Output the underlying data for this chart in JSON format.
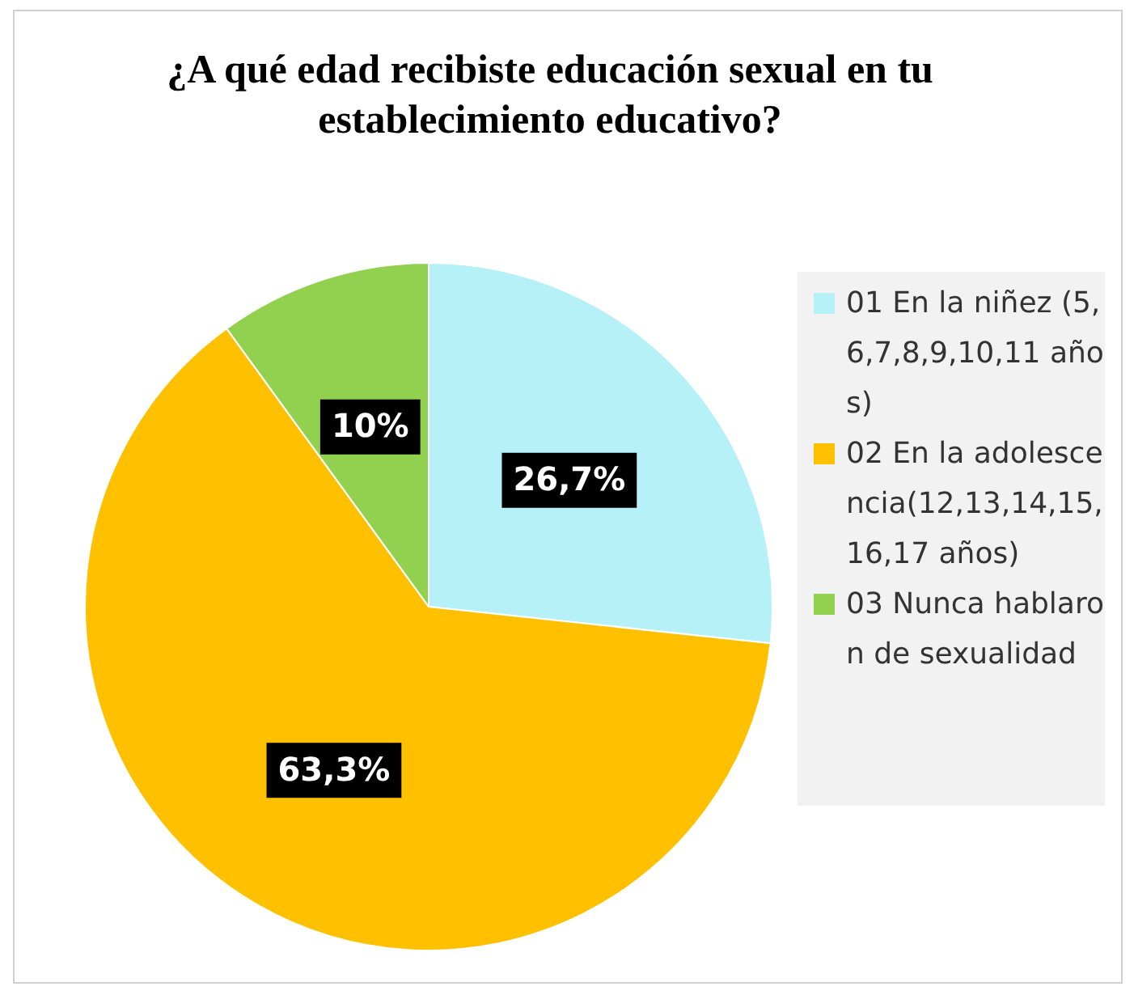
{
  "chart_data": {
    "type": "pie",
    "title": "¿A qué edad recibiste educación sexual en tu establecimiento educativo?",
    "categories": [
      "01 En la niñez (5,6,7,8,9,10,11 años)",
      "02  En la adolescencia(12,13,14,15,16,17 años)",
      "03 Nunca hablaron de sexualidad"
    ],
    "values": [
      26.7,
      63.3,
      10
    ],
    "colors": [
      "#b7f1f8",
      "#ffc000",
      "#92d050"
    ],
    "value_labels": [
      "26,7%",
      "63,3%",
      "10%"
    ],
    "legend": "right"
  }
}
